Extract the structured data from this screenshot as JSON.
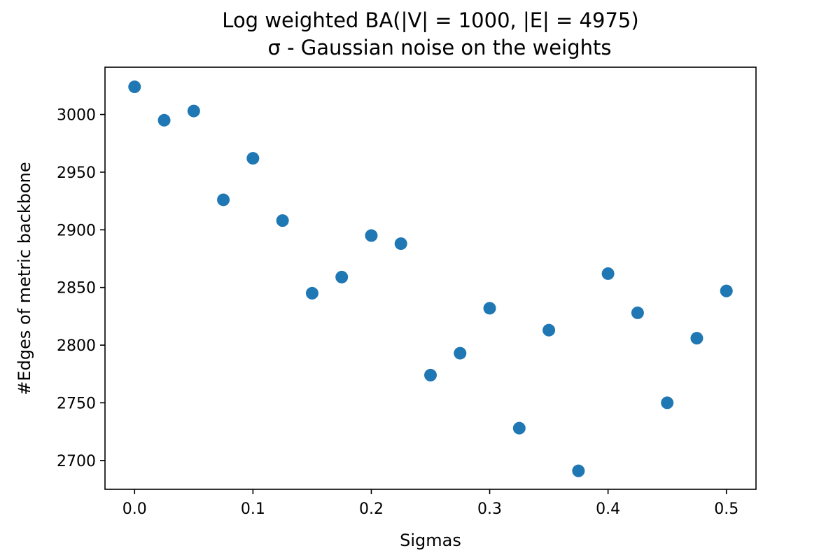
{
  "chart_data": {
    "type": "scatter",
    "title": "Log weighted BA(|V| = 1000, |E| = 4975)",
    "subtitle": "σ - Gaussian noise on the weights",
    "xlabel": "Sigmas",
    "ylabel": "#Edges of metric backbone",
    "xlim": [
      -0.025,
      0.525
    ],
    "ylim": [
      2675,
      3041
    ],
    "x_ticks": [
      "0.0",
      "0.1",
      "0.2",
      "0.3",
      "0.4",
      "0.5"
    ],
    "y_ticks": [
      "2700",
      "2750",
      "2800",
      "2850",
      "2900",
      "2950",
      "3000"
    ],
    "grid": false,
    "legend": "none",
    "marker_color": "#1f77b4",
    "series": [
      {
        "x": [
          0.0,
          0.025,
          0.05,
          0.075,
          0.1,
          0.125,
          0.15,
          0.175,
          0.2,
          0.225,
          0.25,
          0.275,
          0.3,
          0.325,
          0.35,
          0.375,
          0.4,
          0.425,
          0.45,
          0.475,
          0.5
        ],
        "y": [
          3024,
          2995,
          3003,
          2926,
          2962,
          2908,
          2845,
          2859,
          2895,
          2888,
          2774,
          2793,
          2832,
          2728,
          2813,
          2691,
          2862,
          2828,
          2750,
          2806,
          2847
        ]
      }
    ]
  }
}
